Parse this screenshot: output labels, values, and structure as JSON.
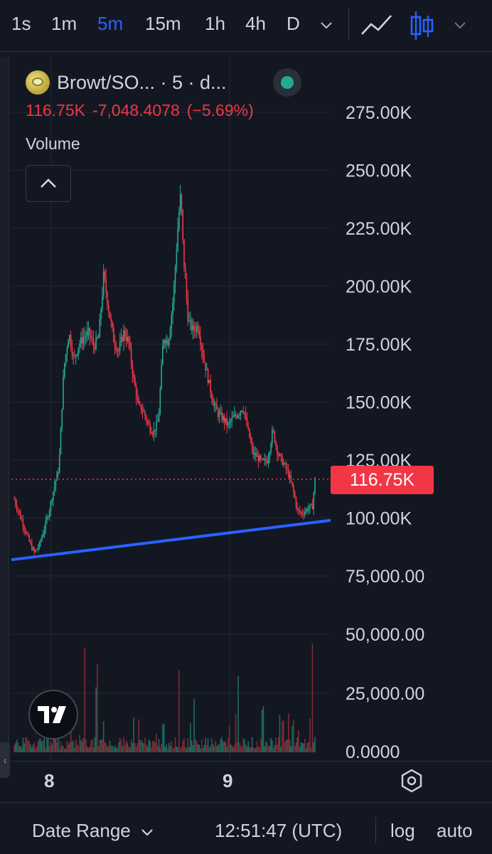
{
  "toolbar": {
    "timeframes": [
      "1s",
      "1m",
      "5m",
      "15m",
      "1h",
      "4h",
      "D"
    ],
    "active": "5m"
  },
  "legend": {
    "symbol": "Browt/SO... · 5 · d...",
    "last_price": "116.75K",
    "change": "-7,048.4078",
    "change_pct": "(−5.69%)",
    "volume_label": "Volume"
  },
  "price_tag": "116.75K",
  "time_labels": [
    "8",
    "9"
  ],
  "bottom_bar": {
    "date_range": "Date Range",
    "clock": "12:51:47 (UTC)",
    "log": "log",
    "auto": "auto"
  },
  "colors": {
    "up": "#22ab94",
    "down": "#f23645",
    "trendline": "#2962ff",
    "active_timeframe": "#2962ff"
  },
  "icons": {
    "chart_style": "line-chart-icon",
    "candles": "candlestick-icon",
    "dropdown": "chevron-down-icon",
    "collapse": "chevron-up-icon",
    "settings": "settings-icon",
    "brand": "tradingview-logo"
  },
  "chart_data": {
    "type": "candlestick",
    "price_axis": {
      "tick_labels": [
        "275.00K",
        "250.00K",
        "225.00K",
        "200.00K",
        "175.00K",
        "150.00K",
        "125.00K",
        "100.00K",
        "75,000.00"
      ],
      "ylim": [
        67000,
        285000
      ]
    },
    "volume_axis": {
      "tick_labels": [
        "50,000.00",
        "25,000.00",
        "0.0000"
      ],
      "ylim": [
        0,
        60000
      ]
    },
    "x_ticks": [
      "8",
      "9"
    ],
    "last_price": 116750,
    "price_path": [
      [
        0,
        108000
      ],
      [
        2,
        102000
      ],
      [
        4,
        96000
      ],
      [
        6,
        90000
      ],
      [
        8,
        85000
      ],
      [
        10,
        88000
      ],
      [
        12,
        95000
      ],
      [
        14,
        103000
      ],
      [
        16,
        113000
      ],
      [
        18,
        122000
      ],
      [
        20,
        165000
      ],
      [
        22,
        180000
      ],
      [
        24,
        168000
      ],
      [
        26,
        175000
      ],
      [
        28,
        178000
      ],
      [
        30,
        180000
      ],
      [
        32,
        174000
      ],
      [
        34,
        178000
      ],
      [
        36,
        205000
      ],
      [
        38,
        190000
      ],
      [
        40,
        177000
      ],
      [
        42,
        172000
      ],
      [
        44,
        180000
      ],
      [
        46,
        176000
      ],
      [
        48,
        160000
      ],
      [
        50,
        148000
      ],
      [
        52,
        146000
      ],
      [
        54,
        140000
      ],
      [
        56,
        137000
      ],
      [
        58,
        142000
      ],
      [
        60,
        178000
      ],
      [
        62,
        176000
      ],
      [
        64,
        195000
      ],
      [
        66,
        228000
      ],
      [
        67,
        240000
      ],
      [
        68,
        215000
      ],
      [
        70,
        185000
      ],
      [
        72,
        181000
      ],
      [
        74,
        183000
      ],
      [
        76,
        170000
      ],
      [
        78,
        160000
      ],
      [
        80,
        150000
      ],
      [
        82,
        145000
      ],
      [
        84,
        143000
      ],
      [
        86,
        140000
      ],
      [
        88,
        143000
      ],
      [
        90,
        145000
      ],
      [
        92,
        148000
      ],
      [
        94,
        138000
      ],
      [
        96,
        128000
      ],
      [
        98,
        126000
      ],
      [
        100,
        124000
      ],
      [
        102,
        125000
      ],
      [
        104,
        138000
      ],
      [
        106,
        128000
      ],
      [
        108,
        124000
      ],
      [
        110,
        120000
      ],
      [
        112,
        113000
      ],
      [
        114,
        103000
      ],
      [
        116,
        102000
      ],
      [
        118,
        104000
      ],
      [
        120,
        105000
      ],
      [
        121,
        116750
      ]
    ],
    "trendline": [
      [
        0,
        82000
      ],
      [
        121,
        99000
      ]
    ]
  }
}
